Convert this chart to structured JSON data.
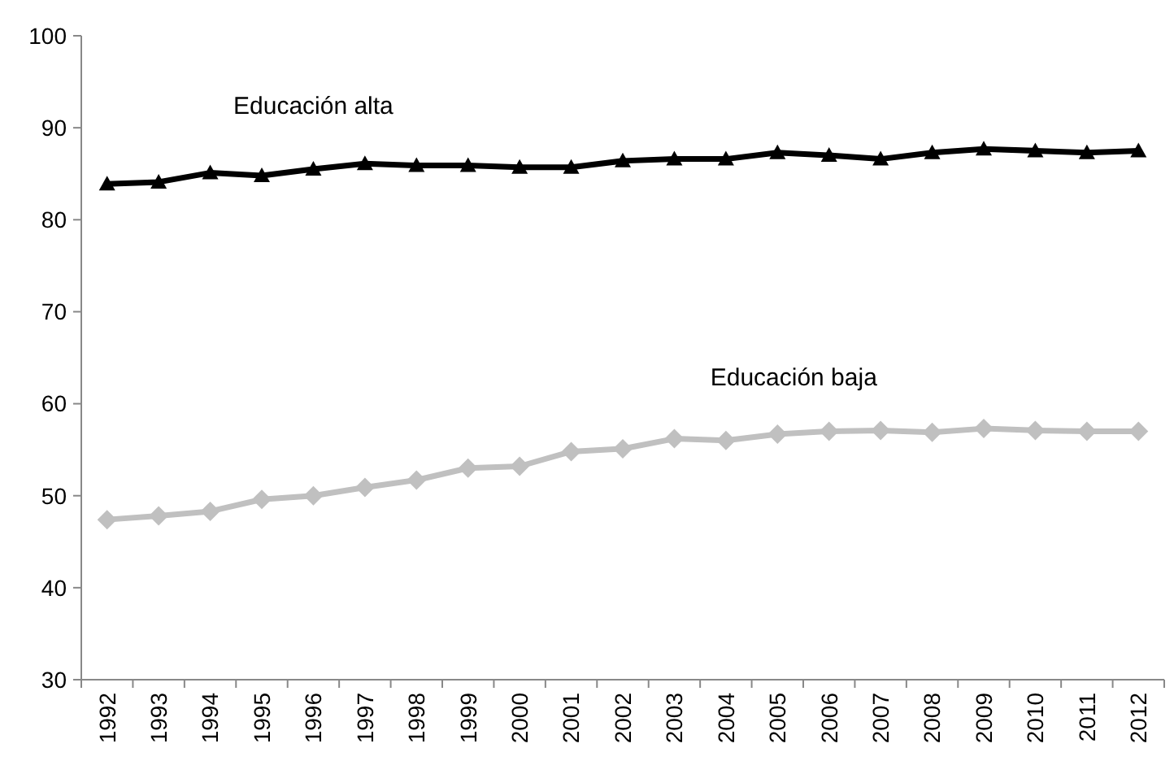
{
  "chart_data": {
    "type": "line",
    "categories": [
      "1992",
      "1993",
      "1994",
      "1995",
      "1996",
      "1997",
      "1998",
      "1999",
      "2000",
      "2001",
      "2002",
      "2003",
      "2004",
      "2005",
      "2006",
      "2007",
      "2008",
      "2009",
      "2010",
      "2011",
      "2012"
    ],
    "series": [
      {
        "name": "Educación alta",
        "color": "#000000",
        "marker": "triangle",
        "values": [
          83.9,
          84.1,
          85.1,
          84.8,
          85.5,
          86.1,
          85.9,
          85.9,
          85.7,
          85.7,
          86.4,
          86.6,
          86.6,
          87.3,
          87.0,
          86.6,
          87.3,
          87.7,
          87.5,
          87.3,
          87.5
        ]
      },
      {
        "name": "Educación baja",
        "color": "#c0c0c0",
        "marker": "diamond",
        "values": [
          47.4,
          47.8,
          48.3,
          49.6,
          50.0,
          50.9,
          51.7,
          53.0,
          53.2,
          54.8,
          55.1,
          56.2,
          56.0,
          56.7,
          57.0,
          57.1,
          56.9,
          57.3,
          57.1,
          57.0,
          57.0
        ]
      }
    ],
    "ylim": [
      30,
      100
    ],
    "yticks": [
      30,
      40,
      50,
      60,
      70,
      80,
      90,
      100
    ],
    "grid": false,
    "line_style": "solid"
  }
}
